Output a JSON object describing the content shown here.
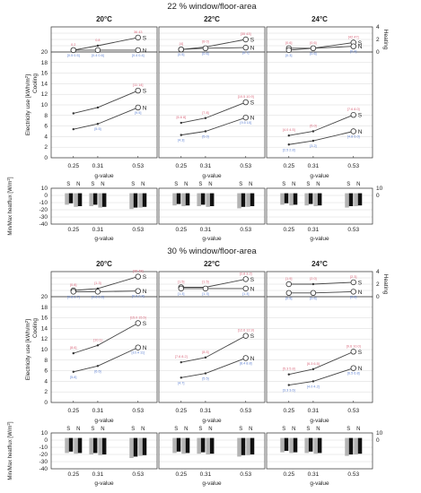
{
  "chart_data": {
    "type": "line",
    "x_label": "g-value",
    "x_ticks": [
      "0.25",
      "0.31",
      "0.53"
    ],
    "colors": {
      "south": "#d9667a",
      "north": "#5b7fd1",
      "line": "#444444",
      "bar_light": "#b4b4b4",
      "bar_dark": "#111111",
      "grid": "#d8d8d8"
    },
    "y_labels": {
      "heating": "Heating",
      "cooling_a": "Electricity use [kWh/m",
      "cooling_b": "Cooling",
      "flux": "Min/Max heatflux [W/m"
    },
    "series_labels": {
      "south": "S",
      "north": "N"
    },
    "heating_ylim": [
      0,
      4
    ],
    "cooling_ylim": [
      0,
      20
    ],
    "flux_ylim": [
      -40,
      10
    ],
    "heating_ticks": [
      "0",
      "2",
      "4"
    ],
    "cooling_ticks": [
      "0",
      "2",
      "4",
      "6",
      "8",
      "10",
      "12",
      "14",
      "16",
      "18",
      "20"
    ],
    "flux_ticks": [
      "10",
      "0",
      "-10",
      "-20",
      "-30",
      "-40"
    ],
    "groups": [
      {
        "title": "22 % window/floor-area",
        "panels": [
          {
            "temp": "20°C",
            "heating": {
              "S": [
                0.3,
                1.0,
                2.3
              ],
              "N": [
                0.3,
                0.3,
                0.3
              ]
            },
            "cooling": {
              "S": [
                8.4,
                9.5,
                12.7
              ],
              "N": [
                5.4,
                6.4,
                9.5
              ]
            },
            "flux": {
              "S": [
                -13,
                -15,
                -19
              ],
              "N": [
                -16,
                -17,
                -17
              ]
            },
            "labels": {
              "heating_S": [
                "0.2",
                "0.8",
                "36 43"
              ],
              "heating_N": [
                "[0.5 0.5]",
                "[0.4 0.6]",
                "[0.4 0.4]"
              ],
              "cooling_S": [
                "",
                "",
                "[11 14]"
              ],
              "cooling_N": [
                "",
                "[5.5]",
                "[9.5]"
              ]
            }
          },
          {
            "temp": "22°C",
            "heating": {
              "S": [
                0.4,
                0.8,
                2.0
              ],
              "N": [
                0.4,
                0.6,
                0.7
              ]
            },
            "cooling": {
              "S": [
                6.6,
                7.5,
                10.5
              ],
              "N": [
                4.3,
                5.0,
                7.6
              ]
            },
            "flux": {
              "S": [
                -14,
                -15,
                -18
              ],
              "N": [
                -15,
                -16,
                -16
              ]
            },
            "labels": {
              "heating_S": [
                "[4]",
                "[8 0]",
                "[35 43]"
              ],
              "heating_N": [
                "[0.5]",
                "[0.6]",
                "[0.7]"
              ],
              "cooling_S": [
                "[6.6 8]",
                "[7.8]",
                "[10.5 10.9]"
              ],
              "cooling_N": [
                "[4.3]",
                "[5.0]",
                "[9.5 10]"
              ]
            }
          },
          {
            "temp": "24°C",
            "heating": {
              "S": [
                0.6,
                0.6,
                1.5
              ],
              "N": [
                0.3,
                0.6,
                0.9
              ]
            },
            "cooling": {
              "S": [
                4.2,
                5.0,
                8.1
              ],
              "N": [
                2.5,
                3.2,
                5.0
              ]
            },
            "flux": {
              "S": [
                -13,
                -14,
                -17
              ],
              "N": [
                -14,
                -15,
                -15
              ]
            },
            "labels": {
              "heating_S": [
                "[0.6]",
                "[0.6]",
                "[42 47]"
              ],
              "heating_N": [
                "[0.3]",
                "[0.6]",
                "[0.9]"
              ],
              "cooling_S": [
                "[4.0 4.5]",
                "[5.0]",
                "[7.6 8.0]"
              ],
              "cooling_N": [
                "[2.5 2.8]",
                "[3.2]",
                "[4.8 5.0]"
              ]
            }
          }
        ]
      },
      {
        "title": "30 % window/floor-area",
        "panels": [
          {
            "temp": "20°C",
            "heating": {
              "S": [
                1.0,
                1.3,
                3.2
              ],
              "N": [
                0.8,
                0.8,
                0.9
              ]
            },
            "cooling": {
              "S": [
                9.3,
                10.8,
                15.0
              ],
              "N": [
                5.8,
                6.9,
                10.4
              ]
            },
            "flux": {
              "S": [
                -18,
                -20,
                -25
              ],
              "N": [
                -19,
                -21,
                -22
              ]
            },
            "labels": {
              "heating_S": [
                "[0.8]",
                "[1.3]",
                "[36 48]"
              ],
              "heating_N": [
                "[0.8 0.7]",
                "[0.8 0.8]",
                "[0.9 0.8]"
              ],
              "cooling_S": [
                "[8.6]",
                "[10.1]",
                "[15.0 15.5]"
              ],
              "cooling_N": [
                "[5.8]",
                "[6.6]",
                "[10.4 11]"
              ]
            }
          },
          {
            "temp": "22°C",
            "heating": {
              "S": [
                1.5,
                1.5,
                2.8
              ],
              "N": [
                1.3,
                1.3,
                1.3
              ]
            },
            "cooling": {
              "S": [
                7.6,
                8.5,
                12.6
              ],
              "N": [
                4.7,
                5.5,
                8.4
              ]
            },
            "flux": {
              "S": [
                -18,
                -19,
                -23
              ],
              "N": [
                -19,
                -20,
                -21
              ]
            },
            "labels": {
              "heating_S": [
                "[1.5]",
                "[1.5]",
                "[2.8 3.2]"
              ],
              "heating_N": [
                "[1.3]",
                "[1.3]",
                "[1.3]"
              ],
              "cooling_S": [
                "[7.6 8.2]",
                "[8.5]",
                "[12.6 12.9]"
              ],
              "cooling_N": [
                "[4.7]",
                "[5.5]",
                "[8.4 8.8]"
              ]
            }
          },
          {
            "temp": "24°C",
            "heating": {
              "S": [
                2.0,
                2.0,
                2.3
              ],
              "N": [
                0.6,
                0.6,
                0.8
              ]
            },
            "cooling": {
              "S": [
                5.3,
                6.3,
                9.6
              ],
              "N": [
                3.3,
                4.0,
                6.5
              ]
            },
            "flux": {
              "S": [
                -17,
                -18,
                -22
              ],
              "N": [
                -18,
                -19,
                -20
              ]
            },
            "labels": {
              "heating_S": [
                "[1.9]",
                "[2.0]",
                "[2.3]"
              ],
              "heating_N": [
                "[0.5]",
                "[0.6]",
                "[0.8]"
              ],
              "cooling_S": [
                "[5.3 5.8]",
                "[6.3 6.5]",
                "[9.6 10.0]"
              ],
              "cooling_N": [
                "[3.3 3.6]",
                "[4.0 4.2]",
                "[6.5 6.8]"
              ]
            }
          }
        ]
      }
    ]
  }
}
